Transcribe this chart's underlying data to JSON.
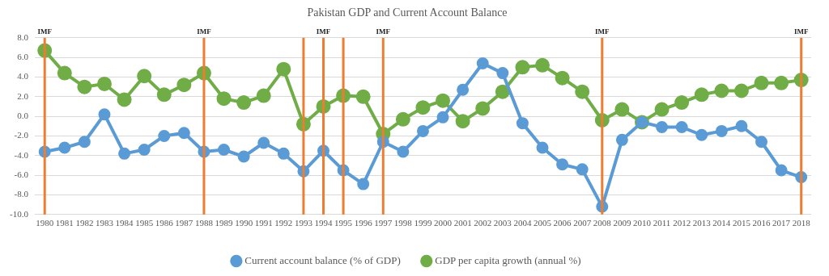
{
  "chart_data": {
    "type": "line",
    "title": "Pakistan GDP and Current Account Balance",
    "categories": [
      "1980",
      "1981",
      "1982",
      "1983",
      "1984",
      "1985",
      "1986",
      "1987",
      "1988",
      "1989",
      "1990",
      "1991",
      "1992",
      "1993",
      "1994",
      "1995",
      "1996",
      "1997",
      "1998",
      "1999",
      "2000",
      "2001",
      "2002",
      "2003",
      "2004",
      "2005",
      "2006",
      "2007",
      "2008",
      "2009",
      "2010",
      "2011",
      "2012",
      "2013",
      "2014",
      "2015",
      "2016",
      "2017",
      "2018"
    ],
    "series": [
      {
        "name": "GDP per capita growth (annual %)",
        "color": "#70ad47",
        "values": [
          6.7,
          4.4,
          3.0,
          3.3,
          1.7,
          4.1,
          2.2,
          3.2,
          4.4,
          1.8,
          1.4,
          2.1,
          4.8,
          -0.8,
          1.0,
          2.1,
          2.0,
          -1.8,
          -0.3,
          0.9,
          1.6,
          -0.5,
          0.8,
          2.5,
          5.0,
          5.2,
          3.9,
          2.5,
          -0.4,
          0.7,
          -0.6,
          0.7,
          1.4,
          2.2,
          2.6,
          2.6,
          3.4,
          3.4,
          3.7
        ]
      },
      {
        "name": "Current account balance (% of GDP)",
        "color": "#5b9bd5",
        "values": [
          -3.6,
          -3.2,
          -2.6,
          0.2,
          -3.8,
          -3.4,
          -2.0,
          -1.7,
          -3.6,
          -3.4,
          -4.1,
          -2.7,
          -3.8,
          -5.6,
          -3.5,
          -5.5,
          -6.9,
          -2.6,
          -3.6,
          -1.5,
          -0.1,
          2.7,
          5.4,
          4.4,
          -0.7,
          -3.2,
          -4.9,
          -5.4,
          -9.2,
          -2.4,
          -0.6,
          -1.1,
          -1.1,
          -1.9,
          -1.5,
          -1.0,
          -2.6,
          -5.5,
          -6.2
        ]
      }
    ],
    "ylim": [
      -10,
      8
    ],
    "yticks": [
      {
        "value": -10,
        "label": "-10.0"
      },
      {
        "value": -8,
        "label": "-8.0"
      },
      {
        "value": -6,
        "label": "-6.0"
      },
      {
        "value": -4,
        "label": "-4.0"
      },
      {
        "value": -2,
        "label": "-2.0"
      },
      {
        "value": 0,
        "label": "0.0"
      },
      {
        "value": 2,
        "label": "2.0"
      },
      {
        "value": 4,
        "label": "4.0"
      },
      {
        "value": 6,
        "label": "6.0"
      },
      {
        "value": 8,
        "label": "8.0"
      }
    ],
    "grid": "y",
    "legend": "bottom",
    "marker": "circle",
    "line_style": "solid",
    "ref_lines": [
      {
        "axis": "x",
        "value": "1980",
        "label": "IMF",
        "color": "#ed7d31"
      },
      {
        "axis": "x",
        "value": "1988",
        "label": "IMF",
        "color": "#ed7d31"
      },
      {
        "axis": "x",
        "value": "1993",
        "label": null,
        "color": "#ed7d31"
      },
      {
        "axis": "x",
        "value": "1994",
        "label": "IMF",
        "color": "#ed7d31"
      },
      {
        "axis": "x",
        "value": "1995",
        "label": null,
        "color": "#ed7d31"
      },
      {
        "axis": "x",
        "value": "1997",
        "label": "IMF",
        "color": "#ed7d31"
      },
      {
        "axis": "x",
        "value": "2008",
        "label": "IMF",
        "color": "#ed7d31"
      },
      {
        "axis": "x",
        "value": "2018",
        "label": "IMF",
        "color": "#ed7d31"
      }
    ]
  }
}
